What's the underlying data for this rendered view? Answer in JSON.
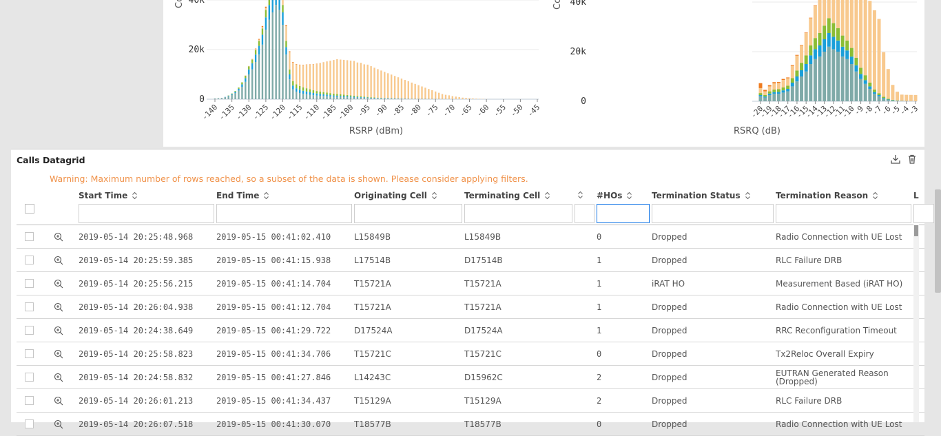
{
  "chart_data": [
    {
      "type": "bar",
      "xlabel": "RSRP (dBm)",
      "ylabel": "Co",
      "ylim": [
        0,
        45000
      ],
      "yticks": [
        "0",
        "20k",
        "40k"
      ],
      "xticks": [
        "-140",
        "-135",
        "-130",
        "-125",
        "-120",
        "-115",
        "-110",
        "-105",
        "-100",
        "-95",
        "-90",
        "-85",
        "-80",
        "-75",
        "-70",
        "-65",
        "-60",
        "-55",
        "-50",
        "-45"
      ],
      "x": [
        -140,
        -139,
        -138,
        -137,
        -136,
        -135,
        -134,
        -133,
        -132,
        -131,
        -130,
        -129,
        -128,
        -127,
        -126,
        -125,
        -124,
        -123,
        -122,
        -121,
        -120,
        -119,
        -118,
        -117,
        -116,
        -115,
        -114,
        -113,
        -112,
        -111,
        -110,
        -109,
        -108,
        -107,
        -106,
        -105,
        -104,
        -103,
        -102,
        -101,
        -100,
        -99,
        -98,
        -97,
        -96,
        -95,
        -94,
        -93,
        -92,
        -91,
        -90,
        -89,
        -88,
        -87,
        -86,
        -85,
        -84,
        -83,
        -82,
        -81,
        -80,
        -79,
        -78,
        -77,
        -76,
        -75,
        -74,
        -73,
        -72,
        -71,
        -70,
        -69,
        -68,
        -67,
        -66,
        -65,
        -64,
        -63,
        -62,
        -61,
        -60
      ],
      "series": [
        {
          "color": "#7faaa8",
          "values": [
            300,
            400,
            500,
            800,
            1200,
            1800,
            2500,
            3500,
            5000,
            7000,
            10000,
            12000,
            15000,
            18000,
            22000,
            28000,
            32000,
            35000,
            38000,
            36000,
            30000,
            18000,
            8000,
            4000,
            3000,
            2500,
            2200,
            2000,
            1800,
            1600,
            1500,
            1400,
            1300,
            1200,
            1100,
            1000,
            950,
            900,
            850,
            800,
            750,
            700,
            650,
            600,
            550,
            500,
            450,
            400,
            380,
            360,
            340,
            320,
            300,
            280,
            260,
            240,
            220,
            200,
            180,
            160,
            150,
            140,
            130,
            120,
            110,
            100,
            90,
            80,
            70,
            60,
            50,
            40,
            30,
            25,
            20,
            15,
            10,
            8,
            6,
            4,
            2
          ]
        },
        {
          "color": "#1a9fd9",
          "values": [
            0,
            0,
            0,
            100,
            200,
            300,
            500,
            700,
            1000,
            1500,
            2000,
            2500,
            3000,
            3500,
            4000,
            5000,
            6000,
            7000,
            8000,
            7000,
            5000,
            3000,
            2000,
            1500,
            1400,
            1300,
            1200,
            1100,
            1000,
            900,
            800,
            700,
            650,
            600,
            550,
            500,
            450,
            400,
            380,
            350,
            300,
            280,
            250,
            220,
            200,
            180,
            160,
            140,
            120,
            100,
            90,
            80,
            70,
            60,
            50,
            40,
            30,
            20,
            15,
            10,
            5,
            0,
            0,
            0,
            0,
            0,
            0,
            0,
            0,
            0,
            0,
            0,
            0,
            0,
            0,
            0,
            0,
            0,
            0,
            0,
            0
          ]
        },
        {
          "color": "#8bbd35",
          "values": [
            0,
            0,
            0,
            0,
            100,
            200,
            300,
            500,
            800,
            1000,
            1200,
            1500,
            1800,
            2000,
            2500,
            3000,
            3500,
            4000,
            4000,
            3500,
            3000,
            2500,
            2000,
            1800,
            1600,
            1500,
            1400,
            1300,
            1200,
            1100,
            1000,
            950,
            900,
            850,
            800,
            750,
            700,
            650,
            600,
            550,
            500,
            450,
            400,
            350,
            300,
            250,
            200,
            150,
            120,
            100,
            80,
            60,
            50,
            40,
            30,
            20,
            10,
            5,
            0,
            0,
            0,
            0,
            0,
            0,
            0,
            0,
            0,
            0,
            0,
            0,
            0,
            0,
            0,
            0,
            0,
            0,
            0,
            0,
            0,
            0,
            0
          ]
        },
        {
          "color": "#f8c98e",
          "values": [
            0,
            0,
            0,
            0,
            0,
            0,
            0,
            0,
            0,
            100,
            200,
            300,
            400,
            500,
            600,
            800,
            1000,
            1500,
            2000,
            3000,
            4000,
            6000,
            7000,
            7500,
            8000,
            8500,
            9000,
            9500,
            10000,
            10500,
            11000,
            11500,
            12000,
            12500,
            13000,
            13500,
            14000,
            14000,
            14000,
            14000,
            14000,
            14000,
            13500,
            13500,
            13000,
            13000,
            12500,
            12000,
            11500,
            11000,
            10500,
            10000,
            9500,
            9000,
            8500,
            8000,
            7500,
            7000,
            6500,
            6000,
            5500,
            5000,
            4500,
            4000,
            3500,
            3000,
            2500,
            2000,
            1700,
            1500,
            1200,
            1000,
            800,
            600,
            500,
            400,
            300,
            200,
            150,
            100,
            50
          ]
        },
        {
          "color": "#ef7b1f",
          "values": [
            0,
            0,
            0,
            0,
            0,
            0,
            0,
            0,
            0,
            0,
            0,
            0,
            200,
            300,
            400,
            500,
            600,
            700,
            800,
            600,
            500,
            400,
            300,
            200,
            150,
            120,
            100,
            90,
            80,
            70,
            60,
            50,
            45,
            40,
            35,
            30,
            25,
            20,
            15,
            10,
            8,
            6,
            5,
            4,
            3,
            2,
            1,
            0,
            0,
            0,
            0,
            0,
            0,
            0,
            0,
            0,
            0,
            0,
            0,
            0,
            0,
            0,
            0,
            0,
            0,
            0,
            0,
            0,
            0,
            0,
            0,
            0,
            0,
            0,
            0,
            0,
            0,
            0,
            0,
            0,
            0
          ]
        }
      ]
    },
    {
      "type": "bar",
      "xlabel": "RSRQ (dB)",
      "ylabel": "Co",
      "ylim": [
        0,
        45000
      ],
      "yticks": [
        "0",
        "20k",
        "40k"
      ],
      "xticks": [
        "-20",
        "-19",
        "-18",
        "-17",
        "-16",
        "-15",
        "-14",
        "-13",
        "-12",
        "-11",
        "-10",
        "-9",
        "-8",
        "-7",
        "-6",
        "-5",
        "-4",
        "-3"
      ],
      "x": [
        -20,
        -19.5,
        -19,
        -18.5,
        -18,
        -17.5,
        -17,
        -16.5,
        -16,
        -15.5,
        -15,
        -14.5,
        -14,
        -13.5,
        -13,
        -12.5,
        -12,
        -11.5,
        -11,
        -10.5,
        -10,
        -9.5,
        -9,
        -8.5,
        -8,
        -7.5,
        -7,
        -6.5,
        -6,
        -5.5,
        -5,
        -4.5,
        -4,
        -3.5,
        -3
      ],
      "series": [
        {
          "color": "#7faaa8",
          "values": [
            2000,
            1500,
            2500,
            3000,
            3000,
            3500,
            4000,
            6000,
            8000,
            10000,
            12000,
            15000,
            17000,
            18000,
            20000,
            22000,
            21000,
            20000,
            18000,
            17000,
            15000,
            12000,
            9000,
            7000,
            5000,
            3000,
            2000,
            1000,
            500,
            300,
            200,
            100,
            50,
            30,
            20
          ]
        },
        {
          "color": "#1a9fd9",
          "values": [
            500,
            400,
            600,
            700,
            800,
            900,
            1000,
            1500,
            2000,
            2500,
            3000,
            3500,
            4000,
            4500,
            5000,
            5500,
            5000,
            4500,
            4000,
            3500,
            3000,
            2500,
            2000,
            1500,
            1000,
            700,
            500,
            300,
            200,
            100,
            50,
            30,
            20,
            10,
            5
          ]
        },
        {
          "color": "#8bbd35",
          "values": [
            800,
            600,
            900,
            1000,
            1100,
            1200,
            1300,
            1800,
            2400,
            3000,
            3500,
            4000,
            4500,
            5000,
            5500,
            6000,
            5500,
            5000,
            4500,
            4000,
            3500,
            3000,
            2500,
            2000,
            1500,
            1000,
            700,
            500,
            300,
            200,
            100,
            50,
            30,
            20,
            10
          ]
        },
        {
          "color": "#f8c98e",
          "values": [
            2000,
            1500,
            2000,
            2500,
            2500,
            3000,
            3000,
            5000,
            6000,
            7000,
            9000,
            11000,
            13000,
            15000,
            17000,
            19000,
            21000,
            23000,
            25000,
            27000,
            28000,
            30000,
            31000,
            32000,
            33000,
            32000,
            30000,
            18000,
            12000,
            6000,
            3500,
            2500,
            2500,
            2500,
            2500
          ]
        },
        {
          "color": "#ef7b1f",
          "values": [
            2000,
            600,
            500,
            500,
            400,
            400,
            300,
            300,
            300,
            200,
            200,
            200,
            200,
            100,
            100,
            100,
            100,
            100,
            100,
            100,
            100,
            100,
            0,
            0,
            0,
            0,
            0,
            0,
            0,
            0,
            0,
            0,
            0,
            0,
            0
          ]
        }
      ]
    }
  ],
  "datagrid": {
    "title": "Calls Datagrid",
    "warning": "Warning: Maximum number of rows reached, so a subset of the data is shown. Please consider applying filters.",
    "columns": {
      "start": "Start Time",
      "end": "End Time",
      "orig": "Originating Cell",
      "term": "Terminating Cell",
      "hos": "#HOs",
      "status": "Termination Status",
      "reason": "Termination Reason",
      "more": "L"
    },
    "rows": [
      {
        "start": "2019-05-14 20:25:48.968",
        "end": "2019-05-15 00:41:02.410",
        "orig": "L15849B",
        "term": "L15849B",
        "hos": "0",
        "status": "Dropped",
        "reason": "Radio Connection with UE Lost"
      },
      {
        "start": "2019-05-14 20:25:59.385",
        "end": "2019-05-15 00:41:15.938",
        "orig": "L17514B",
        "term": "D17514B",
        "hos": "1",
        "status": "Dropped",
        "reason": "RLC Failure DRB"
      },
      {
        "start": "2019-05-14 20:25:56.215",
        "end": "2019-05-15 00:41:14.704",
        "orig": "T15721A",
        "term": "T15721A",
        "hos": "1",
        "status": "iRAT HO",
        "reason": "Measurement Based (iRAT HO)"
      },
      {
        "start": "2019-05-14 20:26:04.938",
        "end": "2019-05-15 00:41:12.704",
        "orig": "T15721A",
        "term": "T15721A",
        "hos": "1",
        "status": "Dropped",
        "reason": "Radio Connection with UE Lost"
      },
      {
        "start": "2019-05-14 20:24:38.649",
        "end": "2019-05-15 00:41:29.722",
        "orig": "D17524A",
        "term": "D17524A",
        "hos": "1",
        "status": "Dropped",
        "reason": "RRC Reconfiguration Timeout"
      },
      {
        "start": "2019-05-14 20:25:58.823",
        "end": "2019-05-15 00:41:34.706",
        "orig": "T15721C",
        "term": "T15721C",
        "hos": "0",
        "status": "Dropped",
        "reason": "Tx2Reloc Overall Expiry"
      },
      {
        "start": "2019-05-14 20:24:58.832",
        "end": "2019-05-15 00:41:27.846",
        "orig": "L14243C",
        "term": "D15962C",
        "hos": "2",
        "status": "Dropped",
        "reason": "EUTRAN Generated Reason (Dropped)"
      },
      {
        "start": "2019-05-14 20:26:01.213",
        "end": "2019-05-15 00:41:34.437",
        "orig": "T15129A",
        "term": "T15129A",
        "hos": "2",
        "status": "Dropped",
        "reason": "RLC Failure DRB"
      },
      {
        "start": "2019-05-14 20:26:07.518",
        "end": "2019-05-15 00:41:30.070",
        "orig": "T18577B",
        "term": "T18577B",
        "hos": "0",
        "status": "Dropped",
        "reason": "Radio Connection with UE Lost"
      }
    ]
  },
  "icons": {
    "download": "download-icon",
    "delete": "trash-icon",
    "row_zoom": "zoom-in-icon",
    "sort": "sort-icon"
  }
}
